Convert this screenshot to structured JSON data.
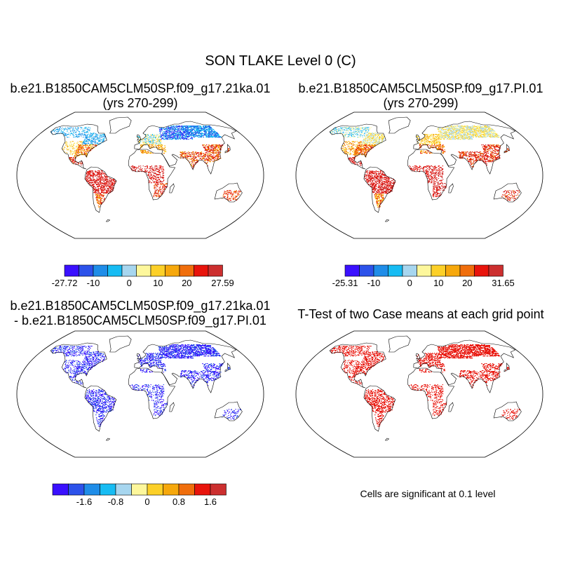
{
  "title": "SON TLAKE Level 0 (C)",
  "panels": [
    {
      "id": "p1",
      "title_line1": "b.e21.B1850CAM5CLM50SP.f09_g17.21ka.01",
      "title_line2": "(yrs 270-299)",
      "colorbar": {
        "colors": [
          "#3a10ff",
          "#2c52ea",
          "#1f8de8",
          "#17bcf3",
          "#a7d6ef",
          "#fdf79c",
          "#fcd028",
          "#f6a80c",
          "#f06e0c",
          "#e8140c",
          "#cc2f2f"
        ],
        "labels": [
          "-27.72",
          "-10",
          "0",
          "10",
          "20",
          "27.59"
        ]
      }
    },
    {
      "id": "p2",
      "title_line1": "b.e21.B1850CAM5CLM50SP.f09_g17.PI.01",
      "title_line2": "(yrs 270-299)",
      "colorbar": {
        "colors": [
          "#3a10ff",
          "#2c52ea",
          "#1f8de8",
          "#17bcf3",
          "#a7d6ef",
          "#fdf79c",
          "#fcd028",
          "#f6a80c",
          "#f06e0c",
          "#e8140c",
          "#cc2f2f"
        ],
        "labels": [
          "-25.31",
          "-10",
          "0",
          "10",
          "20",
          "31.65"
        ]
      }
    },
    {
      "id": "p3",
      "title_line1": "b.e21.B1850CAM5CLM50SP.f09_g17.21ka.01",
      "title_line2": "- b.e21.B1850CAM5CLM50SP.f09_g17.PI.01",
      "colorbar": {
        "colors": [
          "#3a10ff",
          "#2c52ea",
          "#1f8de8",
          "#17bcf3",
          "#a7d6ef",
          "#fdf79c",
          "#fcd028",
          "#f6a80c",
          "#f06e0c",
          "#e8140c",
          "#cc2f2f"
        ],
        "labels": [
          "-1.6",
          "-0.8",
          "0",
          "0.8",
          "1.6"
        ]
      }
    },
    {
      "id": "p4",
      "title_line1": "T-Test of two Case means at each grid point",
      "note": "Cells are significant at 0.1 level"
    }
  ]
}
